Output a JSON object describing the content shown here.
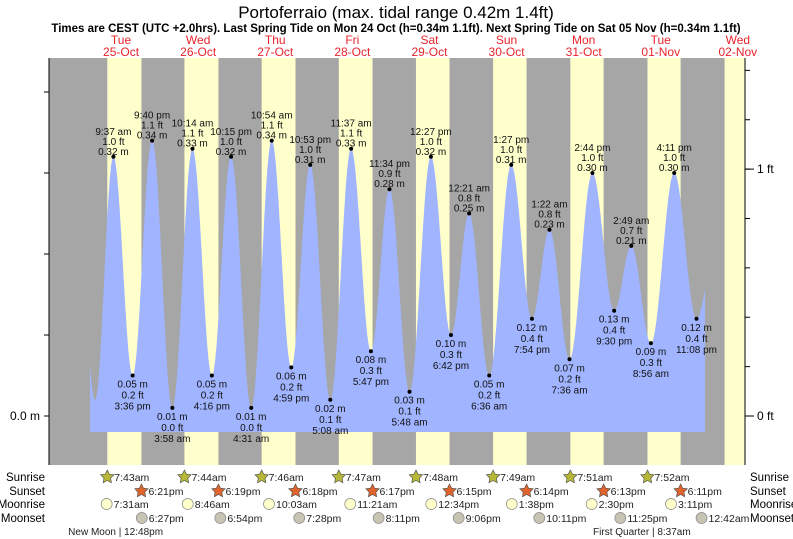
{
  "chart_data": {
    "type": "area",
    "title": "Portoferraio (max. tidal range 0.42m 1.4ft)",
    "subtitle": "Times are CEST (UTC +2.0hrs). Last Spring Tide on Mon 24 Oct (h=0.34m 1.1ft). Next Spring Tide on Sat 05 Nov (h=0.34m 1.1ft)",
    "days": [
      {
        "dow": "Tue",
        "date": "25-Oct"
      },
      {
        "dow": "Wed",
        "date": "26-Oct"
      },
      {
        "dow": "Thu",
        "date": "27-Oct"
      },
      {
        "dow": "Fri",
        "date": "28-Oct"
      },
      {
        "dow": "Sat",
        "date": "29-Oct"
      },
      {
        "dow": "Sun",
        "date": "30-Oct"
      },
      {
        "dow": "Mon",
        "date": "31-Oct"
      },
      {
        "dow": "Tue",
        "date": "01-Nov"
      },
      {
        "dow": "Wed",
        "date": "02-Nov"
      }
    ],
    "axis_left": {
      "label": "0.0 m",
      "unit": "m"
    },
    "axis_right": [
      {
        "label": "1 ft",
        "value_m": 0.3048
      },
      {
        "label": "0 ft",
        "value_m": 0
      }
    ],
    "ylim_m": [
      -0.02,
      0.43
    ],
    "tides": [
      {
        "day": 0,
        "time": "9:37 am",
        "type": "high",
        "m": 0.32,
        "ft": "1.0 ft",
        "m_label": "0.32 m"
      },
      {
        "day": 0,
        "time": "3:36 pm",
        "type": "low",
        "m": 0.05,
        "ft": "0.2 ft",
        "m_label": "0.05 m"
      },
      {
        "day": 0,
        "time": "9:40 pm",
        "type": "high",
        "m": 0.34,
        "ft": "1.1 ft",
        "m_label": "0.34 m"
      },
      {
        "day": 1,
        "time": "3:58 am",
        "type": "low",
        "m": 0.01,
        "ft": "0.0 ft",
        "m_label": "0.01 m"
      },
      {
        "day": 1,
        "time": "10:14 am",
        "type": "high",
        "m": 0.33,
        "ft": "1.1 ft",
        "m_label": "0.33 m"
      },
      {
        "day": 1,
        "time": "4:16 pm",
        "type": "low",
        "m": 0.05,
        "ft": "0.2 ft",
        "m_label": "0.05 m"
      },
      {
        "day": 1,
        "time": "10:15 pm",
        "type": "high",
        "m": 0.32,
        "ft": "1.0 ft",
        "m_label": "0.32 m"
      },
      {
        "day": 2,
        "time": "4:31 am",
        "type": "low",
        "m": 0.01,
        "ft": "0.0 ft",
        "m_label": "0.01 m"
      },
      {
        "day": 2,
        "time": "10:54 am",
        "type": "high",
        "m": 0.34,
        "ft": "1.1 ft",
        "m_label": "0.34 m"
      },
      {
        "day": 2,
        "time": "4:59 pm",
        "type": "low",
        "m": 0.06,
        "ft": "0.2 ft",
        "m_label": "0.06 m"
      },
      {
        "day": 2,
        "time": "10:53 pm",
        "type": "high",
        "m": 0.31,
        "ft": "1.0 ft",
        "m_label": "0.31 m"
      },
      {
        "day": 3,
        "time": "5:08 am",
        "type": "low",
        "m": 0.02,
        "ft": "0.1 ft",
        "m_label": "0.02 m"
      },
      {
        "day": 3,
        "time": "11:37 am",
        "type": "high",
        "m": 0.33,
        "ft": "1.1 ft",
        "m_label": "0.33 m"
      },
      {
        "day": 3,
        "time": "5:47 pm",
        "type": "low",
        "m": 0.08,
        "ft": "0.3 ft",
        "m_label": "0.08 m"
      },
      {
        "day": 3,
        "time": "11:34 pm",
        "type": "high",
        "m": 0.28,
        "ft": "0.9 ft",
        "m_label": "0.28 m"
      },
      {
        "day": 4,
        "time": "5:48 am",
        "type": "low",
        "m": 0.03,
        "ft": "0.1 ft",
        "m_label": "0.03 m"
      },
      {
        "day": 4,
        "time": "12:27 pm",
        "type": "high",
        "m": 0.32,
        "ft": "1.0 ft",
        "m_label": "0.32 m"
      },
      {
        "day": 4,
        "time": "6:42 pm",
        "type": "low",
        "m": 0.1,
        "ft": "0.3 ft",
        "m_label": "0.10 m"
      },
      {
        "day": 5,
        "time": "12:21 am",
        "type": "high",
        "m": 0.25,
        "ft": "0.8 ft",
        "m_label": "0.25 m"
      },
      {
        "day": 5,
        "time": "6:36 am",
        "type": "low",
        "m": 0.05,
        "ft": "0.2 ft",
        "m_label": "0.05 m"
      },
      {
        "day": 5,
        "time": "1:27 pm",
        "type": "high",
        "m": 0.31,
        "ft": "1.0 ft",
        "m_label": "0.31 m"
      },
      {
        "day": 5,
        "time": "7:54 pm",
        "type": "low",
        "m": 0.12,
        "ft": "0.4 ft",
        "m_label": "0.12 m"
      },
      {
        "day": 6,
        "time": "1:22 am",
        "type": "high",
        "m": 0.23,
        "ft": "0.8 ft",
        "m_label": "0.23 m"
      },
      {
        "day": 6,
        "time": "7:36 am",
        "type": "low",
        "m": 0.07,
        "ft": "0.2 ft",
        "m_label": "0.07 m"
      },
      {
        "day": 6,
        "time": "2:44 pm",
        "type": "high",
        "m": 0.3,
        "ft": "1.0 ft",
        "m_label": "0.30 m"
      },
      {
        "day": 6,
        "time": "9:30 pm",
        "type": "low",
        "m": 0.13,
        "ft": "0.4 ft",
        "m_label": "0.13 m"
      },
      {
        "day": 7,
        "time": "2:49 am",
        "type": "high",
        "m": 0.21,
        "ft": "0.7 ft",
        "m_label": "0.21 m"
      },
      {
        "day": 7,
        "time": "8:56 am",
        "type": "low",
        "m": 0.09,
        "ft": "0.3 ft",
        "m_label": "0.09 m"
      },
      {
        "day": 7,
        "time": "4:11 pm",
        "type": "high",
        "m": 0.3,
        "ft": "1.0 ft",
        "m_label": "0.30 m"
      },
      {
        "day": 7,
        "time": "11:08 pm",
        "type": "low",
        "m": 0.12,
        "ft": "0.4 ft",
        "m_label": "0.12 m"
      }
    ],
    "rows": {
      "sunrise": {
        "label": "Sunrise",
        "events": [
          {
            "day": 0,
            "time": "7:43am"
          },
          {
            "day": 1,
            "time": "7:44am"
          },
          {
            "day": 2,
            "time": "7:46am"
          },
          {
            "day": 3,
            "time": "7:47am"
          },
          {
            "day": 4,
            "time": "7:48am"
          },
          {
            "day": 5,
            "time": "7:49am"
          },
          {
            "day": 6,
            "time": "7:51am"
          },
          {
            "day": 7,
            "time": "7:52am"
          }
        ]
      },
      "sunset": {
        "label": "Sunset",
        "events": [
          {
            "day": 0,
            "time": "6:21pm"
          },
          {
            "day": 1,
            "time": "6:19pm"
          },
          {
            "day": 2,
            "time": "6:18pm"
          },
          {
            "day": 3,
            "time": "6:17pm"
          },
          {
            "day": 4,
            "time": "6:15pm"
          },
          {
            "day": 5,
            "time": "6:14pm"
          },
          {
            "day": 6,
            "time": "6:13pm"
          },
          {
            "day": 7,
            "time": "6:11pm"
          }
        ]
      },
      "moonrise": {
        "label": "Moonrise",
        "events": [
          {
            "day": 0,
            "time": "7:31am"
          },
          {
            "day": 1,
            "time": "8:46am"
          },
          {
            "day": 2,
            "time": "10:03am"
          },
          {
            "day": 3,
            "time": "11:21am"
          },
          {
            "day": 4,
            "time": "12:34pm"
          },
          {
            "day": 5,
            "time": "1:38pm"
          },
          {
            "day": 6,
            "time": "2:30pm"
          },
          {
            "day": 7,
            "time": "3:11pm"
          }
        ]
      },
      "moonset": {
        "label": "Moonset",
        "events": [
          {
            "day": 0,
            "time": "6:27pm"
          },
          {
            "day": 1,
            "time": "6:54pm"
          },
          {
            "day": 2,
            "time": "7:28pm"
          },
          {
            "day": 3,
            "time": "8:11pm"
          },
          {
            "day": 4,
            "time": "9:06pm"
          },
          {
            "day": 5,
            "time": "10:11pm"
          },
          {
            "day": 6,
            "time": "11:25pm"
          },
          {
            "day": 8,
            "time": "12:42am"
          }
        ]
      }
    },
    "moon_phases": [
      {
        "day": 0,
        "time": "12:48pm",
        "label": "New Moon | 12:48pm"
      },
      {
        "day": 7,
        "time": "8:37am",
        "label": "First Quarter | 8:37am"
      }
    ],
    "colors": {
      "night": "#a6a6a6",
      "day": "#ffffcc",
      "water": "#a0b4ff",
      "dayLabel": "#e8242c",
      "sunrise": "#b8b838",
      "sunset": "#e0642c",
      "moonrise": "#ffffcc",
      "moonset": "#c8c4b4"
    }
  }
}
